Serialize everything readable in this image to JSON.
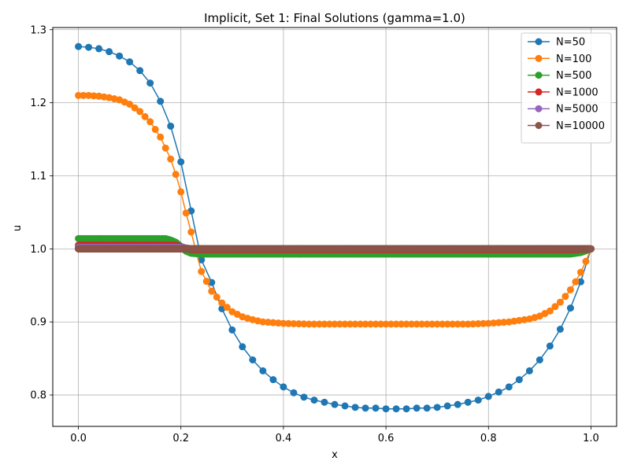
{
  "chart_data": {
    "type": "line",
    "title": "Implicit, Set 1: Final Solutions (gamma=1.0)",
    "xlabel": "x",
    "ylabel": "u",
    "xlim": [
      -0.05,
      1.05
    ],
    "ylim": [
      0.757,
      1.303
    ],
    "xticks": [
      0.0,
      0.2,
      0.4,
      0.6,
      0.8,
      1.0
    ],
    "xtick_labels": [
      "0.0",
      "0.2",
      "0.4",
      "0.6",
      "0.8",
      "1.0"
    ],
    "yticks": [
      0.8,
      0.9,
      1.0,
      1.1,
      1.2,
      1.3
    ],
    "ytick_labels": [
      "0.8",
      "0.9",
      "1.0",
      "1.1",
      "1.2",
      "1.3"
    ],
    "grid": true,
    "legend_position": "top-right",
    "series": [
      {
        "name": "N=50",
        "color": "#1f77b4",
        "marker_points": 51,
        "x": [
          0.0,
          0.02,
          0.04,
          0.06,
          0.08,
          0.1,
          0.12,
          0.14,
          0.16,
          0.18,
          0.2,
          0.22,
          0.24,
          0.26,
          0.28,
          0.3,
          0.32,
          0.34,
          0.36,
          0.38,
          0.4,
          0.42,
          0.44,
          0.46,
          0.48,
          0.5,
          0.52,
          0.54,
          0.56,
          0.58,
          0.6,
          0.62,
          0.64,
          0.66,
          0.68,
          0.7,
          0.72,
          0.74,
          0.76,
          0.78,
          0.8,
          0.82,
          0.84,
          0.86,
          0.88,
          0.9,
          0.92,
          0.94,
          0.96,
          0.98,
          1.0
        ],
        "y": [
          1.277,
          1.276,
          1.274,
          1.27,
          1.264,
          1.256,
          1.244,
          1.227,
          1.202,
          1.168,
          1.119,
          1.052,
          0.985,
          0.954,
          0.918,
          0.889,
          0.866,
          0.848,
          0.833,
          0.821,
          0.811,
          0.803,
          0.797,
          0.793,
          0.79,
          0.787,
          0.785,
          0.783,
          0.782,
          0.782,
          0.781,
          0.781,
          0.781,
          0.782,
          0.782,
          0.783,
          0.785,
          0.787,
          0.79,
          0.793,
          0.798,
          0.804,
          0.811,
          0.821,
          0.833,
          0.848,
          0.867,
          0.89,
          0.919,
          0.955,
          1.0
        ]
      },
      {
        "name": "N=100",
        "color": "#ff7f0e",
        "marker_points": 101,
        "profile": [
          [
            0.0,
            1.21
          ],
          [
            0.02,
            1.21
          ],
          [
            0.04,
            1.209
          ],
          [
            0.06,
            1.207
          ],
          [
            0.08,
            1.204
          ],
          [
            0.1,
            1.198
          ],
          [
            0.12,
            1.188
          ],
          [
            0.14,
            1.174
          ],
          [
            0.16,
            1.153
          ],
          [
            0.18,
            1.123
          ],
          [
            0.19,
            1.102
          ],
          [
            0.2,
            1.078
          ],
          [
            0.21,
            1.049
          ],
          [
            0.22,
            1.023
          ],
          [
            0.23,
            0.995
          ],
          [
            0.24,
            0.969
          ],
          [
            0.26,
            0.942
          ],
          [
            0.28,
            0.926
          ],
          [
            0.3,
            0.914
          ],
          [
            0.32,
            0.907
          ],
          [
            0.34,
            0.903
          ],
          [
            0.36,
            0.9
          ],
          [
            0.38,
            0.899
          ],
          [
            0.4,
            0.898
          ],
          [
            0.45,
            0.897
          ],
          [
            0.5,
            0.897
          ],
          [
            0.6,
            0.897
          ],
          [
            0.7,
            0.897
          ],
          [
            0.76,
            0.897
          ],
          [
            0.8,
            0.898
          ],
          [
            0.84,
            0.9
          ],
          [
            0.88,
            0.904
          ],
          [
            0.9,
            0.908
          ],
          [
            0.92,
            0.915
          ],
          [
            0.94,
            0.927
          ],
          [
            0.95,
            0.935
          ],
          [
            0.96,
            0.944
          ],
          [
            0.97,
            0.955
          ],
          [
            0.98,
            0.968
          ],
          [
            0.99,
            0.983
          ],
          [
            1.0,
            1.0
          ]
        ]
      },
      {
        "name": "N=500",
        "color": "#2ca02c",
        "marker_points": 501,
        "profile": [
          [
            0.0,
            1.014
          ],
          [
            0.17,
            1.014
          ],
          [
            0.18,
            1.012
          ],
          [
            0.19,
            1.009
          ],
          [
            0.2,
            1.003
          ],
          [
            0.21,
            0.997
          ],
          [
            0.22,
            0.994
          ],
          [
            0.24,
            0.993
          ],
          [
            0.96,
            0.993
          ],
          [
            0.98,
            0.995
          ],
          [
            1.0,
            1.0
          ]
        ]
      },
      {
        "name": "N=1000",
        "color": "#d62728",
        "marker_points": 1001,
        "profile": [
          [
            0.0,
            1.005
          ],
          [
            0.19,
            1.005
          ],
          [
            0.21,
            1.001
          ],
          [
            0.22,
            0.999
          ],
          [
            0.97,
            0.999
          ],
          [
            1.0,
            1.0
          ]
        ]
      },
      {
        "name": "N=5000",
        "color": "#9467bd",
        "marker_points": 5001,
        "profile": [
          [
            0.0,
            1.002
          ],
          [
            0.2,
            1.002
          ],
          [
            0.22,
            1.0
          ],
          [
            1.0,
            1.0
          ]
        ]
      },
      {
        "name": "N=10000",
        "color": "#8c564b",
        "marker_points": 10001,
        "profile": [
          [
            0.0,
            1.0
          ],
          [
            1.0,
            1.0
          ]
        ]
      }
    ]
  }
}
